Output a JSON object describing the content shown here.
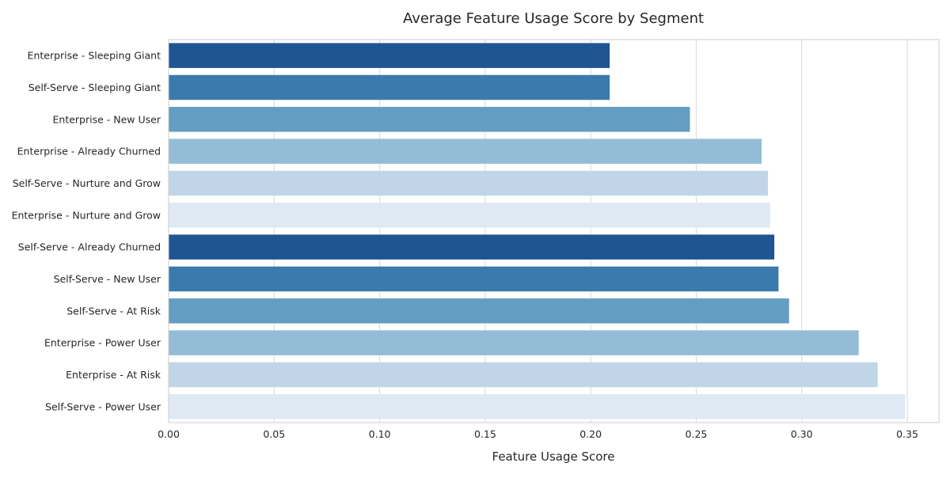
{
  "chart_data": {
    "type": "bar",
    "orientation": "horizontal",
    "title": "Average Feature Usage Score by Segment",
    "xlabel": "Feature Usage Score",
    "ylabel": "",
    "xlim": [
      0,
      0.365
    ],
    "xticks": [
      0.0,
      0.05,
      0.1,
      0.15,
      0.2,
      0.25,
      0.3,
      0.35
    ],
    "xtick_labels": [
      "0.00",
      "0.05",
      "0.10",
      "0.15",
      "0.20",
      "0.25",
      "0.30",
      "0.35"
    ],
    "grid": "vertical",
    "categories": [
      "Enterprise - Sleeping Giant",
      "Self-Serve - Sleeping Giant",
      "Enterprise - New User",
      "Enterprise - Already Churned",
      "Self-Serve - Nurture and Grow",
      "Enterprise - Nurture and Grow",
      "Self-Serve - Already Churned",
      "Self-Serve - New User",
      "Self-Serve - At Risk",
      "Enterprise - Power User",
      "Enterprise - At Risk",
      "Self-Serve - Power User"
    ],
    "values": [
      0.209,
      0.209,
      0.247,
      0.281,
      0.284,
      0.285,
      0.287,
      0.289,
      0.294,
      0.327,
      0.336,
      0.349
    ],
    "colors": [
      "#1f5591",
      "#3a7aad",
      "#639dc2",
      "#94bcd6",
      "#c0d6e8",
      "#dfe9f4",
      "#1f5591",
      "#3a7aad",
      "#639dc2",
      "#94bcd6",
      "#c0d6e8",
      "#dfe9f4"
    ]
  }
}
